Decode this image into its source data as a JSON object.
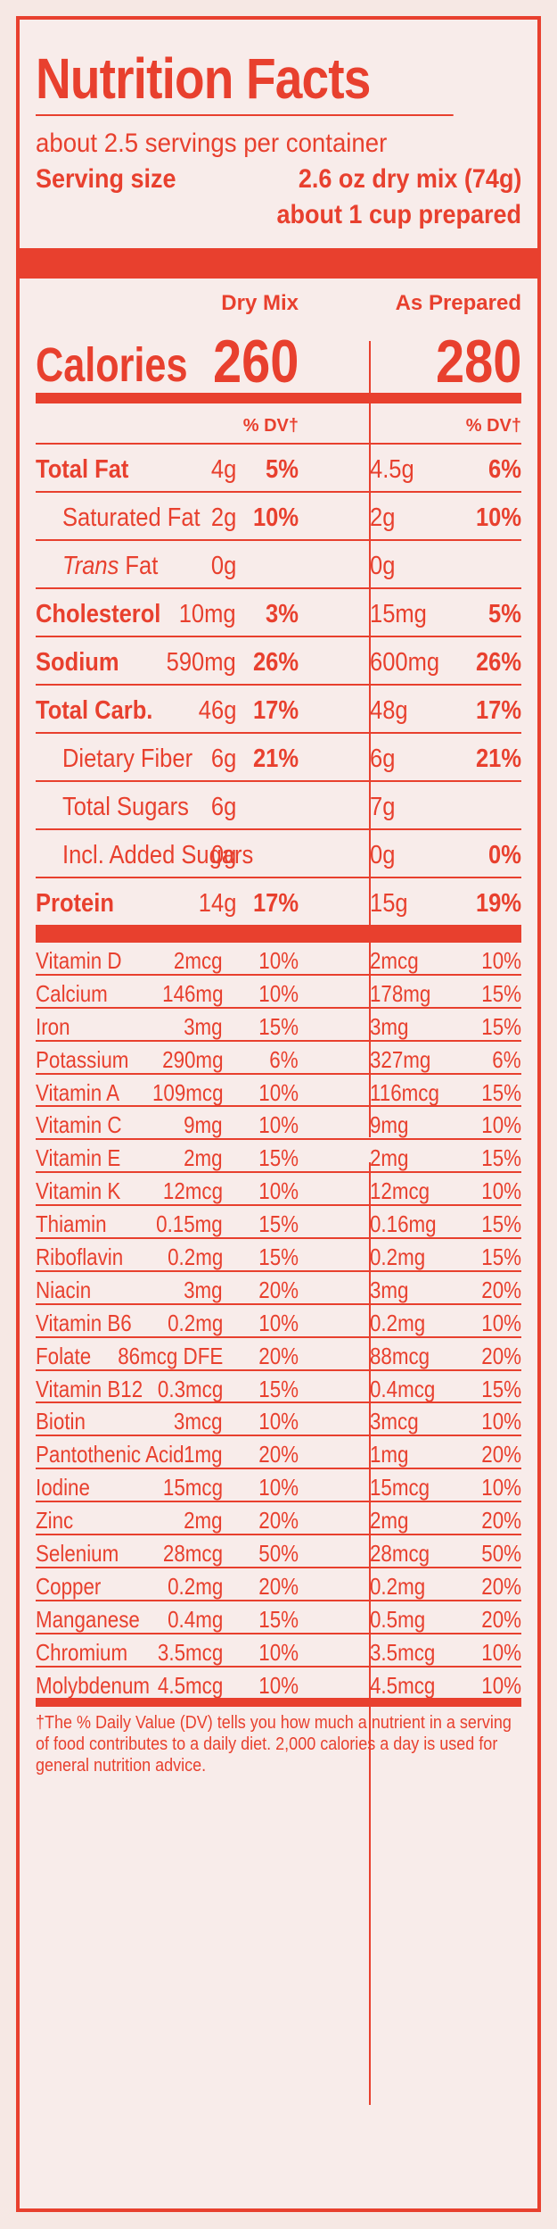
{
  "title": "Nutrition Facts",
  "servings_per_container": "about 2.5 servings per container",
  "serving_size_label": "Serving size",
  "serving_size_value": "2.6 oz dry mix (74g)",
  "serving_size_prepared": "about 1 cup prepared",
  "columns": {
    "dry": "Dry Mix",
    "prepared": "As Prepared"
  },
  "calories": {
    "label": "Calories",
    "dry": "260",
    "prepared": "280"
  },
  "dv_header": "% DV†",
  "nutrients": [
    {
      "name": "Total Fat",
      "dry_amt": "4g",
      "dry_dv": "5%",
      "prep_amt": "4.5g",
      "prep_dv": "6%",
      "bold": true,
      "indent": false
    },
    {
      "name": "Saturated Fat",
      "dry_amt": "2g",
      "dry_dv": "10%",
      "prep_amt": "2g",
      "prep_dv": "10%",
      "bold": false,
      "indent": true
    },
    {
      "name": "Trans Fat",
      "dry_amt": "0g",
      "dry_dv": "",
      "prep_amt": "0g",
      "prep_dv": "",
      "bold": false,
      "indent": true,
      "italic_prefix": "Trans"
    },
    {
      "name": "Cholesterol",
      "dry_amt": "10mg",
      "dry_dv": "3%",
      "prep_amt": "15mg",
      "prep_dv": "5%",
      "bold": true,
      "indent": false
    },
    {
      "name": "Sodium",
      "dry_amt": "590mg",
      "dry_dv": "26%",
      "prep_amt": "600mg",
      "prep_dv": "26%",
      "bold": true,
      "indent": false
    },
    {
      "name": "Total Carb.",
      "dry_amt": "46g",
      "dry_dv": "17%",
      "prep_amt": "48g",
      "prep_dv": "17%",
      "bold": true,
      "indent": false
    },
    {
      "name": "Dietary Fiber",
      "dry_amt": "6g",
      "dry_dv": "21%",
      "prep_amt": "6g",
      "prep_dv": "21%",
      "bold": false,
      "indent": true
    },
    {
      "name": "Total Sugars",
      "dry_amt": "6g",
      "dry_dv": "",
      "prep_amt": "7g",
      "prep_dv": "",
      "bold": false,
      "indent": true
    },
    {
      "name": "Incl. Added Sugars",
      "dry_amt": "0g",
      "dry_dv": "",
      "prep_amt": "0g",
      "prep_dv": "0%",
      "bold": false,
      "indent": true
    },
    {
      "name": "Protein",
      "dry_amt": "14g",
      "dry_dv": "17%",
      "prep_amt": "15g",
      "prep_dv": "19%",
      "bold": true,
      "indent": false
    }
  ],
  "vitamins": [
    {
      "name": "Vitamin D",
      "dry_amt": "2mcg",
      "dry_dv": "10%",
      "prep_amt": "2mcg",
      "prep_dv": "10%"
    },
    {
      "name": "Calcium",
      "dry_amt": "146mg",
      "dry_dv": "10%",
      "prep_amt": "178mg",
      "prep_dv": "15%"
    },
    {
      "name": "Iron",
      "dry_amt": "3mg",
      "dry_dv": "15%",
      "prep_amt": "3mg",
      "prep_dv": "15%"
    },
    {
      "name": "Potassium",
      "dry_amt": "290mg",
      "dry_dv": "6%",
      "prep_amt": "327mg",
      "prep_dv": "6%"
    },
    {
      "name": "Vitamin A",
      "dry_amt": "109mcg",
      "dry_dv": "10%",
      "prep_amt": "116mcg",
      "prep_dv": "15%"
    },
    {
      "name": "Vitamin C",
      "dry_amt": "9mg",
      "dry_dv": "10%",
      "prep_amt": "9mg",
      "prep_dv": "10%"
    },
    {
      "name": "Vitamin E",
      "dry_amt": "2mg",
      "dry_dv": "15%",
      "prep_amt": "2mg",
      "prep_dv": "15%"
    },
    {
      "name": "Vitamin K",
      "dry_amt": "12mcg",
      "dry_dv": "10%",
      "prep_amt": "12mcg",
      "prep_dv": "10%"
    },
    {
      "name": "Thiamin",
      "dry_amt": "0.15mg",
      "dry_dv": "15%",
      "prep_amt": "0.16mg",
      "prep_dv": "15%"
    },
    {
      "name": "Riboflavin",
      "dry_amt": "0.2mg",
      "dry_dv": "15%",
      "prep_amt": "0.2mg",
      "prep_dv": "15%"
    },
    {
      "name": "Niacin",
      "dry_amt": "3mg",
      "dry_dv": "20%",
      "prep_amt": "3mg",
      "prep_dv": "20%"
    },
    {
      "name": "Vitamin B6",
      "dry_amt": "0.2mg",
      "dry_dv": "10%",
      "prep_amt": "0.2mg",
      "prep_dv": "10%"
    },
    {
      "name": "Folate",
      "dry_amt": "86mcg DFE",
      "dry_dv": "20%",
      "prep_amt": "88mcg",
      "prep_dv": "20%"
    },
    {
      "name": "Vitamin B12",
      "dry_amt": "0.3mcg",
      "dry_dv": "15%",
      "prep_amt": "0.4mcg",
      "prep_dv": "15%"
    },
    {
      "name": "Biotin",
      "dry_amt": "3mcg",
      "dry_dv": "10%",
      "prep_amt": "3mcg",
      "prep_dv": "10%"
    },
    {
      "name": "Pantothenic Acid",
      "dry_amt": "1mg",
      "dry_dv": "20%",
      "prep_amt": "1mg",
      "prep_dv": "20%"
    },
    {
      "name": "Iodine",
      "dry_amt": "15mcg",
      "dry_dv": "10%",
      "prep_amt": "15mcg",
      "prep_dv": "10%"
    },
    {
      "name": "Zinc",
      "dry_amt": "2mg",
      "dry_dv": "20%",
      "prep_amt": "2mg",
      "prep_dv": "20%"
    },
    {
      "name": "Selenium",
      "dry_amt": "28mcg",
      "dry_dv": "50%",
      "prep_amt": "28mcg",
      "prep_dv": "50%"
    },
    {
      "name": "Copper",
      "dry_amt": "0.2mg",
      "dry_dv": "20%",
      "prep_amt": "0.2mg",
      "prep_dv": "20%"
    },
    {
      "name": "Manganese",
      "dry_amt": "0.4mg",
      "dry_dv": "15%",
      "prep_amt": "0.5mg",
      "prep_dv": "20%"
    },
    {
      "name": "Chromium",
      "dry_amt": "3.5mcg",
      "dry_dv": "10%",
      "prep_amt": "3.5mcg",
      "prep_dv": "10%"
    },
    {
      "name": "Molybdenum",
      "dry_amt": "4.5mcg",
      "dry_dv": "10%",
      "prep_amt": "4.5mcg",
      "prep_dv": "10%"
    }
  ],
  "footnote": "†The % Daily Value (DV) tells you how much a nutrient in a serving of  food contributes to a daily diet. 2,000 calories a day is used for general nutrition advice.",
  "colors": {
    "ink": "#e8402e",
    "background": "#f8ecea"
  }
}
